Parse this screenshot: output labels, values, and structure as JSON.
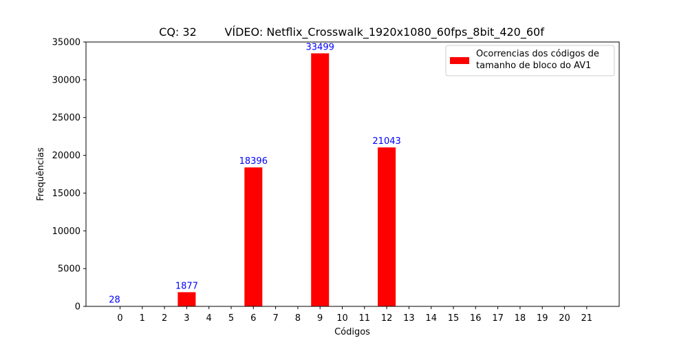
{
  "chart_data": {
    "type": "bar",
    "title": "CQ: 32        VÍDEO: Netflix_Crosswalk_1920x1080_60fps_8bit_420_60f",
    "xlabel": "Códigos",
    "ylabel": "Frequências",
    "categories": [
      "0",
      "1",
      "2",
      "3",
      "4",
      "5",
      "6",
      "7",
      "8",
      "9",
      "10",
      "11",
      "12",
      "13",
      "14",
      "15",
      "16",
      "17",
      "18",
      "19",
      "20",
      "21"
    ],
    "values": [
      28,
      0,
      0,
      1877,
      0,
      0,
      18396,
      0,
      0,
      33499,
      0,
      0,
      21043,
      0,
      0,
      0,
      0,
      0,
      0,
      0,
      0,
      0
    ],
    "data_labels": [
      {
        "index": 0,
        "text": "28"
      },
      {
        "index": 3,
        "text": "1877"
      },
      {
        "index": 6,
        "text": "18396"
      },
      {
        "index": 9,
        "text": "33499"
      },
      {
        "index": 12,
        "text": "21043"
      }
    ],
    "ylim": [
      0,
      35000
    ],
    "yticks": [
      0,
      5000,
      10000,
      15000,
      20000,
      25000,
      30000,
      35000
    ],
    "grid": false,
    "legend": {
      "placement": "top-right",
      "entries": [
        "Ocorrencias dos códigos de\ntamanho de bloco do AV1"
      ]
    },
    "colors": {
      "bar": "#ff0000",
      "data_label": "#0000ff",
      "axis": "#000000"
    }
  }
}
